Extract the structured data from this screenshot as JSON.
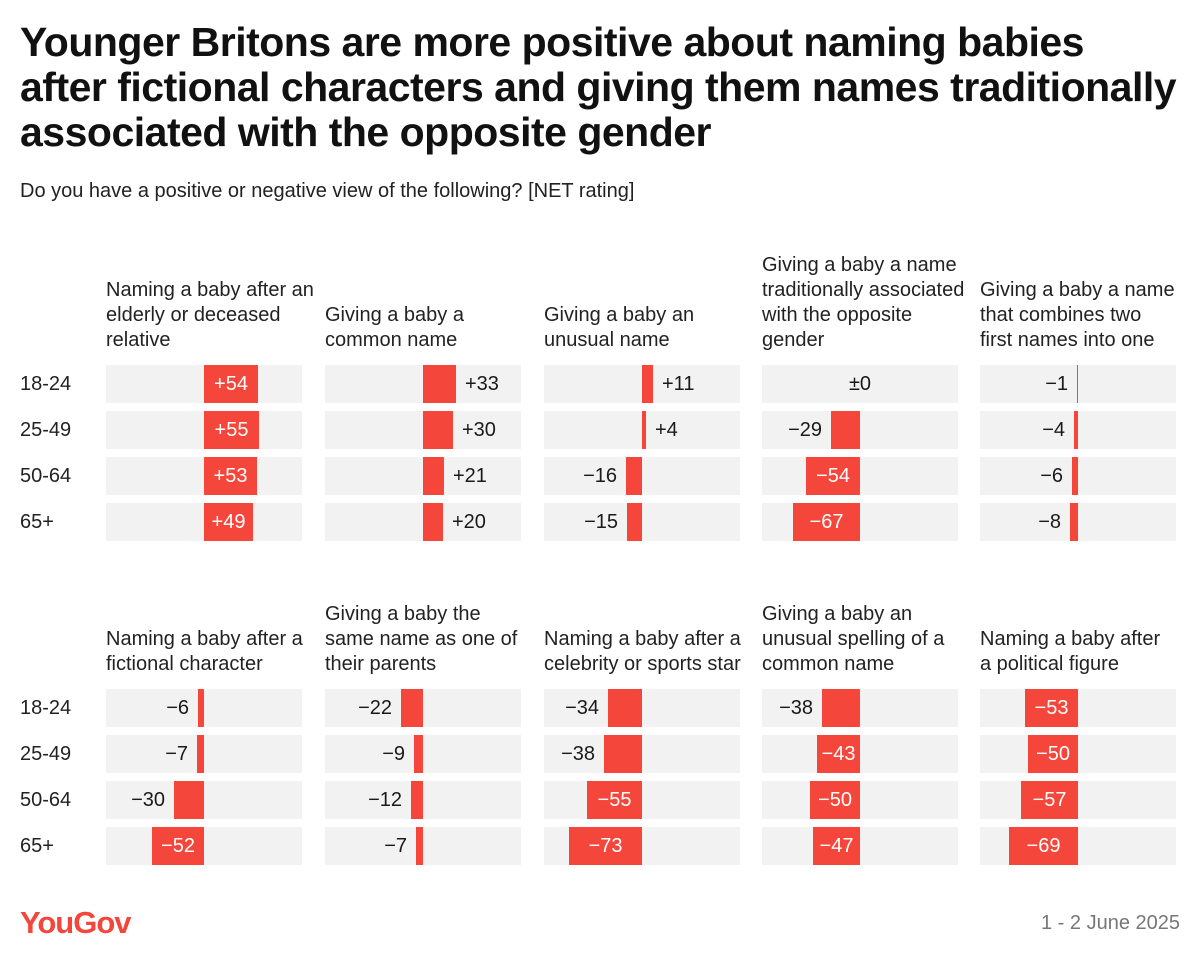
{
  "title": "Younger Britons are more positive about naming babies after fictional characters and giving them names traditionally associated with the opposite gender",
  "subtitle": "Do you have a positive or negative view of the following? [NET rating]",
  "footer": {
    "logo": "YouGov",
    "date": "1 - 2 June 2025"
  },
  "colors": {
    "bar": "#f4463a",
    "background_band": "#f2f2f2",
    "logo": "#f4463a"
  },
  "chart_data": {
    "type": "bar",
    "orientation": "horizontal",
    "categories": [
      "18-24",
      "25-49",
      "50-64",
      "65+"
    ],
    "xlim": [
      -75,
      75
    ],
    "panels": [
      {
        "title": "Naming a baby after an elderly or deceased relative",
        "values": [
          54,
          55,
          53,
          49
        ],
        "labels": [
          "+54",
          "+55",
          "+53",
          "+49"
        ]
      },
      {
        "title": "Giving a baby a common name",
        "values": [
          33,
          30,
          21,
          20
        ],
        "labels": [
          "+33",
          "+30",
          "+21",
          "+20"
        ]
      },
      {
        "title": "Giving a baby an unusual name",
        "values": [
          11,
          4,
          -16,
          -15
        ],
        "labels": [
          "+11",
          "+4",
          "−16",
          "−15"
        ]
      },
      {
        "title": "Giving a baby a name traditionally associated with the opposite gender",
        "values": [
          0,
          -29,
          -54,
          -67
        ],
        "labels": [
          "±0",
          "−29",
          "−54",
          "−67"
        ]
      },
      {
        "title": "Giving a baby a name that combines two first names into one",
        "values": [
          -1,
          -4,
          -6,
          -8
        ],
        "labels": [
          "−1",
          "−4",
          "−6",
          "−8"
        ]
      },
      {
        "title": "Naming a baby after a fictional character",
        "values": [
          -6,
          -7,
          -30,
          -52
        ],
        "labels": [
          "−6",
          "−7",
          "−30",
          "−52"
        ]
      },
      {
        "title": "Giving a baby the same name as one of their parents",
        "values": [
          -22,
          -9,
          -12,
          -7
        ],
        "labels": [
          "−22",
          "−9",
          "−12",
          "−7"
        ]
      },
      {
        "title": "Naming a baby after a celebrity or sports star",
        "values": [
          -34,
          -38,
          -55,
          -73
        ],
        "labels": [
          "−34",
          "−38",
          "−55",
          "−73"
        ]
      },
      {
        "title": "Giving a baby an unusual spelling of a common name",
        "values": [
          -38,
          -43,
          -50,
          -47
        ],
        "labels": [
          "−38",
          "−43",
          "−50",
          "−47"
        ]
      },
      {
        "title": "Naming a baby after a political figure",
        "values": [
          -53,
          -50,
          -57,
          -69
        ],
        "labels": [
          "−53",
          "−50",
          "−57",
          "−69"
        ]
      }
    ]
  }
}
